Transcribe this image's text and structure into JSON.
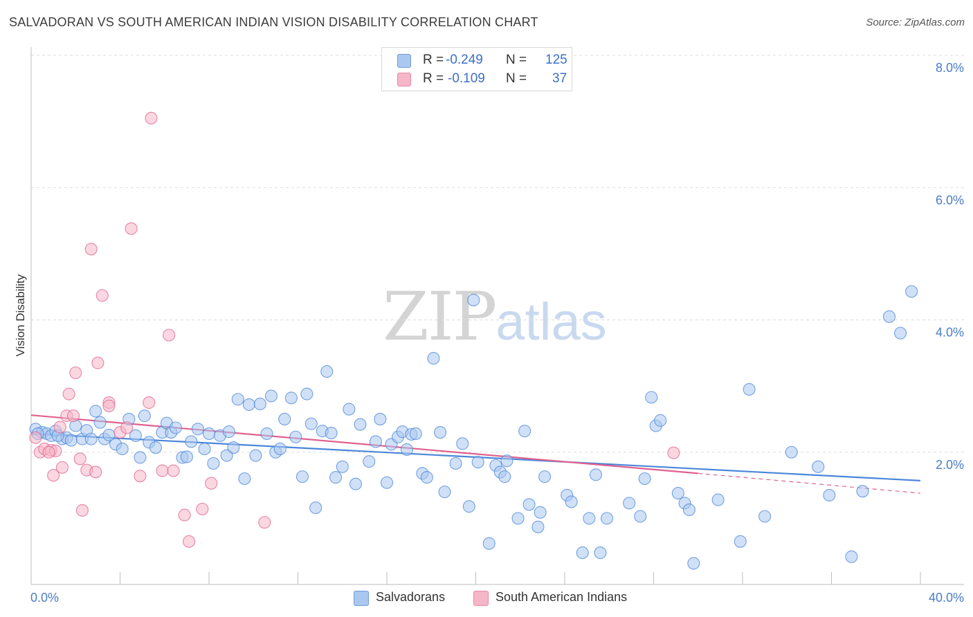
{
  "title": "SALVADORAN VS SOUTH AMERICAN INDIAN VISION DISABILITY CORRELATION CHART",
  "source": "Source: ZipAtlas.com",
  "watermark": {
    "zip": "ZIP",
    "atlas": "atlas"
  },
  "legend": {
    "r_label": "R =",
    "n_label": "N =",
    "rows": [
      {
        "r": "-0.249",
        "n": "125",
        "color": "#a9c7ef"
      },
      {
        "r": "-0.109",
        "n": "37",
        "color": "#f5b6c8"
      }
    ]
  },
  "bottom_legend": [
    {
      "label": "Salvadorans",
      "color": "#a9c7ef"
    },
    {
      "label": "South American Indians",
      "color": "#f5b6c8"
    }
  ],
  "chart_data": {
    "type": "scatter",
    "title": "SALVADORAN VS SOUTH AMERICAN INDIAN VISION DISABILITY CORRELATION CHART",
    "xlabel": "",
    "ylabel": "Vision Disability",
    "xlim": [
      0,
      40
    ],
    "ylim": [
      0,
      8
    ],
    "x_tick_labels": [
      {
        "value": 0,
        "label": "0.0%"
      },
      {
        "value": 40,
        "label": "40.0%"
      }
    ],
    "y_tick_labels": [
      {
        "value": 2,
        "label": "2.0%"
      },
      {
        "value": 4,
        "label": "4.0%"
      },
      {
        "value": 6,
        "label": "6.0%"
      },
      {
        "value": 8,
        "label": "8.0%"
      }
    ],
    "series": [
      {
        "name": "Salvadorans",
        "color": "#4a86d9",
        "fill": "#a9c7ef",
        "trend": {
          "x0": 0,
          "y0": 2.28,
          "x1": 40,
          "y1": 1.57
        },
        "points": [
          [
            0.2,
            2.35
          ],
          [
            0.5,
            2.3
          ],
          [
            0.7,
            2.28
          ],
          [
            0.9,
            2.25
          ],
          [
            1.1,
            2.32
          ],
          [
            1.4,
            2.2
          ],
          [
            1.6,
            2.22
          ],
          [
            1.8,
            2.18
          ],
          [
            2.0,
            2.4
          ],
          [
            2.3,
            2.2
          ],
          [
            2.5,
            2.33
          ],
          [
            2.7,
            2.2
          ],
          [
            2.9,
            2.62
          ],
          [
            3.1,
            2.45
          ],
          [
            3.3,
            2.2
          ],
          [
            3.5,
            2.26
          ],
          [
            3.8,
            2.12
          ],
          [
            4.1,
            2.05
          ],
          [
            4.4,
            2.5
          ],
          [
            4.7,
            2.25
          ],
          [
            4.9,
            1.92
          ],
          [
            5.1,
            2.55
          ],
          [
            5.3,
            2.15
          ],
          [
            5.6,
            2.07
          ],
          [
            5.9,
            2.3
          ],
          [
            6.1,
            2.44
          ],
          [
            6.3,
            2.3
          ],
          [
            6.5,
            2.37
          ],
          [
            6.8,
            1.92
          ],
          [
            7.0,
            1.93
          ],
          [
            7.2,
            2.16
          ],
          [
            7.5,
            2.35
          ],
          [
            7.8,
            2.05
          ],
          [
            8.0,
            2.28
          ],
          [
            8.2,
            1.83
          ],
          [
            8.5,
            2.25
          ],
          [
            8.8,
            1.95
          ],
          [
            8.9,
            2.31
          ],
          [
            9.1,
            2.07
          ],
          [
            9.3,
            2.8
          ],
          [
            9.6,
            1.6
          ],
          [
            9.8,
            2.72
          ],
          [
            10.1,
            1.95
          ],
          [
            10.3,
            2.73
          ],
          [
            10.6,
            2.28
          ],
          [
            10.8,
            2.85
          ],
          [
            11.0,
            2.0
          ],
          [
            11.2,
            2.05
          ],
          [
            11.4,
            2.5
          ],
          [
            11.7,
            2.82
          ],
          [
            11.9,
            2.23
          ],
          [
            12.2,
            1.63
          ],
          [
            12.4,
            2.88
          ],
          [
            12.6,
            2.43
          ],
          [
            12.8,
            1.16
          ],
          [
            13.1,
            2.32
          ],
          [
            13.3,
            3.22
          ],
          [
            13.5,
            2.29
          ],
          [
            13.7,
            1.62
          ],
          [
            14.0,
            1.78
          ],
          [
            14.3,
            2.65
          ],
          [
            14.6,
            1.52
          ],
          [
            14.8,
            2.42
          ],
          [
            15.2,
            1.86
          ],
          [
            15.5,
            2.16
          ],
          [
            15.7,
            2.5
          ],
          [
            16.0,
            1.54
          ],
          [
            16.2,
            2.12
          ],
          [
            16.5,
            2.23
          ],
          [
            16.7,
            2.31
          ],
          [
            16.9,
            2.04
          ],
          [
            17.1,
            2.27
          ],
          [
            17.3,
            2.28
          ],
          [
            17.6,
            1.68
          ],
          [
            17.8,
            1.62
          ],
          [
            18.1,
            3.42
          ],
          [
            18.4,
            2.3
          ],
          [
            18.6,
            1.4
          ],
          [
            19.1,
            1.83
          ],
          [
            19.4,
            2.13
          ],
          [
            19.7,
            1.18
          ],
          [
            19.9,
            4.3
          ],
          [
            20.1,
            1.85
          ],
          [
            20.6,
            0.62
          ],
          [
            20.9,
            1.8
          ],
          [
            21.1,
            1.7
          ],
          [
            21.4,
            1.87
          ],
          [
            21.3,
            1.63
          ],
          [
            21.9,
            1.0
          ],
          [
            22.2,
            2.32
          ],
          [
            22.4,
            1.21
          ],
          [
            22.8,
            0.87
          ],
          [
            22.9,
            1.09
          ],
          [
            23.1,
            1.63
          ],
          [
            24.1,
            1.35
          ],
          [
            24.3,
            1.25
          ],
          [
            24.8,
            0.48
          ],
          [
            25.1,
            1.0
          ],
          [
            25.4,
            1.66
          ],
          [
            25.6,
            0.48
          ],
          [
            25.9,
            1.0
          ],
          [
            26.9,
            1.23
          ],
          [
            27.4,
            1.03
          ],
          [
            27.6,
            1.6
          ],
          [
            27.9,
            2.83
          ],
          [
            28.1,
            2.4
          ],
          [
            28.3,
            2.48
          ],
          [
            29.1,
            1.38
          ],
          [
            29.4,
            1.23
          ],
          [
            29.6,
            1.13
          ],
          [
            29.8,
            0.32
          ],
          [
            30.9,
            1.28
          ],
          [
            31.9,
            0.65
          ],
          [
            32.3,
            2.95
          ],
          [
            33.0,
            1.03
          ],
          [
            34.2,
            2.0
          ],
          [
            35.4,
            1.78
          ],
          [
            35.9,
            1.35
          ],
          [
            36.9,
            0.42
          ],
          [
            37.4,
            1.41
          ],
          [
            38.6,
            4.05
          ],
          [
            39.1,
            3.8
          ],
          [
            39.6,
            4.43
          ],
          [
            0.3,
            2.28
          ],
          [
            1.2,
            2.25
          ]
        ]
      },
      {
        "name": "South American Indians",
        "color": "#e0608e",
        "fill": "#f5b6c8",
        "trend": {
          "x0": 0,
          "y0": 2.56,
          "x1": 30.0,
          "y1": 1.68
        },
        "trend_ext": {
          "x0": 30.0,
          "y0": 1.68,
          "x1": 40,
          "y1": 1.38
        },
        "points": [
          [
            0.2,
            2.22
          ],
          [
            0.4,
            2.0
          ],
          [
            0.6,
            2.05
          ],
          [
            0.9,
            2.03
          ],
          [
            1.0,
            1.65
          ],
          [
            1.1,
            2.02
          ],
          [
            1.3,
            2.38
          ],
          [
            1.4,
            1.77
          ],
          [
            1.6,
            2.55
          ],
          [
            1.7,
            2.88
          ],
          [
            1.9,
            2.55
          ],
          [
            2.0,
            3.2
          ],
          [
            2.2,
            1.9
          ],
          [
            2.3,
            1.12
          ],
          [
            2.5,
            1.73
          ],
          [
            2.7,
            5.07
          ],
          [
            2.9,
            1.7
          ],
          [
            3.0,
            3.35
          ],
          [
            3.2,
            4.37
          ],
          [
            3.5,
            2.75
          ],
          [
            3.5,
            2.7
          ],
          [
            4.0,
            2.3
          ],
          [
            4.3,
            2.37
          ],
          [
            4.5,
            5.38
          ],
          [
            4.9,
            1.64
          ],
          [
            5.3,
            2.75
          ],
          [
            5.4,
            7.05
          ],
          [
            5.9,
            1.72
          ],
          [
            6.2,
            3.77
          ],
          [
            6.4,
            1.72
          ],
          [
            6.9,
            1.05
          ],
          [
            7.1,
            0.65
          ],
          [
            7.7,
            1.14
          ],
          [
            8.1,
            1.53
          ],
          [
            10.5,
            0.94
          ],
          [
            28.9,
            1.99
          ],
          [
            0.8,
            2.0
          ]
        ]
      }
    ]
  }
}
